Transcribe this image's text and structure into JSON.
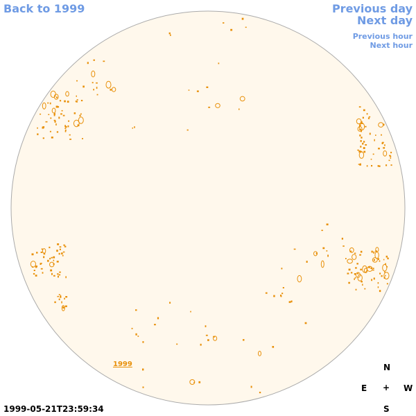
{
  "nav": {
    "back_label": "Back to 1999",
    "previous_day_label": "Previous day",
    "next_day_label": "Next day",
    "previous_hour_label": "Previous hour",
    "next_hour_label": "Next hour"
  },
  "sun": {
    "year_label": "1999",
    "timestamp": "1999-05-21T23:59:34"
  },
  "compass": {
    "north": "N",
    "east": "E",
    "center": "+",
    "west": "W",
    "south": "S"
  },
  "colors": {
    "link": "#6f9be4",
    "disk_fill": "#fff8ec",
    "disk_edge": "#aaaaaa",
    "feature": "#e8900a"
  }
}
